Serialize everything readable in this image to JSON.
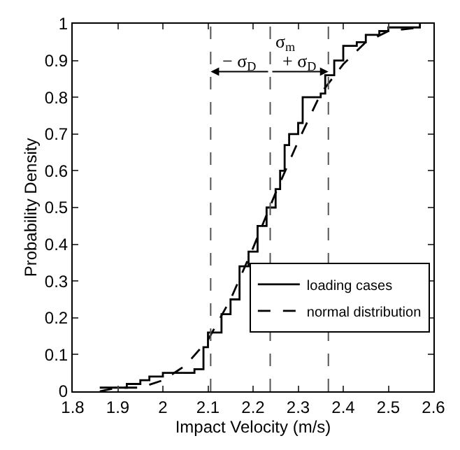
{
  "chart_data": {
    "type": "line",
    "xlabel": "Impact Velocity (m/s)",
    "ylabel": "Probability Density",
    "xlim": [
      1.8,
      2.6
    ],
    "xticks": [
      1.8,
      1.9,
      2,
      2.1,
      2.2,
      2.3,
      2.4,
      2.5,
      2.6
    ],
    "ylim": [
      0,
      1
    ],
    "yticks": [
      0,
      0.1,
      0.2,
      0.3,
      0.4,
      0.5,
      0.6,
      0.7,
      0.8,
      0.9,
      1
    ],
    "legend": "right",
    "marker": "none",
    "series": [
      {
        "name": "loading cases",
        "type": "step",
        "color": "#000000",
        "line_style": "solid",
        "x": [
          1.86,
          1.92,
          1.95,
          1.97,
          2.0,
          2.07,
          2.09,
          2.1,
          2.13,
          2.15,
          2.17,
          2.19,
          2.21,
          2.23,
          2.25,
          2.26,
          2.27,
          2.28,
          2.3,
          2.31,
          2.35,
          2.36,
          2.38,
          2.4,
          2.43,
          2.45,
          2.48,
          2.5,
          2.57
        ],
        "values": [
          0.01,
          0.02,
          0.03,
          0.04,
          0.05,
          0.06,
          0.12,
          0.16,
          0.21,
          0.25,
          0.34,
          0.38,
          0.45,
          0.5,
          0.55,
          0.6,
          0.67,
          0.7,
          0.73,
          0.8,
          0.81,
          0.86,
          0.9,
          0.94,
          0.95,
          0.97,
          0.98,
          0.99,
          1.0
        ]
      },
      {
        "name": "normal distribution",
        "color": "#000000",
        "line_style": "dashed",
        "x": [
          1.86,
          1.9,
          1.95,
          2.0,
          2.05,
          2.1,
          2.15,
          2.2,
          2.25,
          2.3,
          2.35,
          2.4,
          2.45,
          2.5,
          2.57
        ],
        "values": [
          0.0,
          0.01,
          0.01,
          0.03,
          0.07,
          0.14,
          0.25,
          0.39,
          0.54,
          0.68,
          0.81,
          0.89,
          0.95,
          0.98,
          0.99
        ]
      }
    ],
    "ref_lines": [
      {
        "axis": "x",
        "value": 2.106,
        "color": "#555555",
        "line_style": "dashed"
      },
      {
        "axis": "x",
        "value": 2.238,
        "color": "#555555",
        "line_style": "dashed"
      },
      {
        "axis": "x",
        "value": 2.367,
        "color": "#555555",
        "line_style": "dashed"
      }
    ],
    "annotations": [
      "σ$_{m}$",
      "− σ$_{D}$",
      "+ σ$_{D}$"
    ]
  }
}
